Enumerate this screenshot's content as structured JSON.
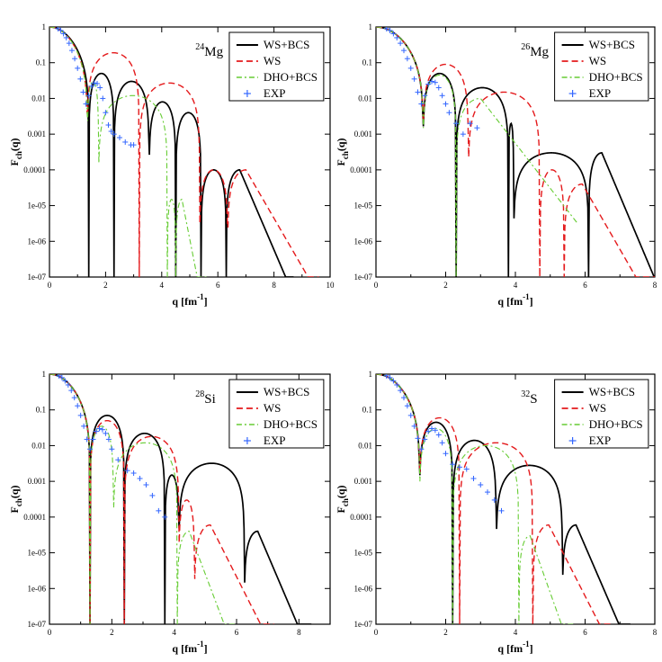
{
  "legend_labels": [
    "WS+BCS",
    "WS",
    "DHO+BCS",
    "EXP"
  ],
  "colors": {
    "WS+BCS": "#000000",
    "WS": "#e41a1c",
    "DHO+BCS": "#66cc33",
    "EXP": "#3366ff"
  },
  "chart_data": [
    {
      "type": "line",
      "nucleus": {
        "mass": "24",
        "symbol": "Mg"
      },
      "xlabel": "q [fm",
      "xlabel_sup": "-1",
      "xlabel_close": "]",
      "ylabel": "F",
      "ylabel_sub": "ch",
      "ylabel_arg": "(q)",
      "yscale": "log",
      "xlim": [
        0,
        10
      ],
      "ylim": [
        1e-07,
        1
      ],
      "xticks": [
        0,
        2,
        4,
        6,
        8,
        10
      ],
      "xticklabels": [
        "0",
        "2",
        "4",
        "6",
        "8",
        "10"
      ],
      "yticks": [
        1,
        0.1,
        0.01,
        0.001,
        0.0001,
        1e-05,
        1e-06,
        1e-07
      ],
      "yticklabels": [
        "1",
        "0.1",
        "0.01",
        "0.001",
        "0.0001",
        "1e-05",
        "1e-06",
        "1e-07"
      ],
      "series": [
        {
          "name": "WS+BCS",
          "style": "solid",
          "zeros": [
            1.4,
            2.3,
            3.55,
            4.5,
            5.4,
            6.3
          ],
          "peaks": [
            0.05,
            0.03,
            0.008,
            0.004,
            0.0001
          ],
          "qmax": 8.7
        },
        {
          "name": "WS",
          "style": "dash",
          "zeros": [
            1.35,
            3.2,
            5.35,
            6.35
          ],
          "peaks": [
            0.19,
            0.027,
            0.0001
          ],
          "qmax": 9.6
        },
        {
          "name": "DHO+BCS",
          "style": "dashdot",
          "zeros": [
            1.35,
            1.75,
            4.2,
            4.5
          ],
          "peaks": [
            0.03,
            0.012,
            1.5e-05
          ],
          "qmax": 5.6
        },
        {
          "name": "EXP",
          "style": "points",
          "x": [
            0.3,
            0.4,
            0.5,
            0.6,
            0.7,
            0.8,
            0.9,
            1.0,
            1.1,
            1.2,
            1.3,
            1.4,
            1.5,
            1.6,
            1.7,
            1.8,
            1.9,
            2.0,
            2.1,
            2.2,
            2.3,
            2.5,
            2.7,
            2.9,
            3.0
          ],
          "y": [
            0.9,
            0.8,
            0.65,
            0.5,
            0.35,
            0.22,
            0.13,
            0.07,
            0.035,
            0.015,
            0.007,
            0.012,
            0.022,
            0.027,
            0.026,
            0.02,
            0.01,
            0.004,
            0.0018,
            0.0012,
            0.001,
            0.0008,
            0.0006,
            0.0005,
            0.0005
          ]
        }
      ]
    },
    {
      "type": "line",
      "nucleus": {
        "mass": "26",
        "symbol": "Mg"
      },
      "xlabel": "q [fm",
      "xlabel_sup": "-1",
      "xlabel_close": "]",
      "ylabel": "F",
      "ylabel_sub": "ch",
      "ylabel_arg": "(q)",
      "yscale": "log",
      "xlim": [
        0,
        8
      ],
      "ylim": [
        1e-07,
        1
      ],
      "xticks": [
        0,
        2,
        4,
        6,
        8
      ],
      "xticklabels": [
        "0",
        "2",
        "4",
        "6",
        "8"
      ],
      "yticks": [
        1,
        0.1,
        0.01,
        0.001,
        0.0001,
        1e-05,
        1e-06,
        1e-07
      ],
      "yticklabels": [
        "1",
        "0.1",
        "0.01",
        "0.001",
        "0.0001",
        "1e-05",
        "1e-06",
        "1e-07"
      ],
      "series": [
        {
          "name": "WS+BCS",
          "style": "solid",
          "zeros": [
            1.35,
            2.3,
            3.8,
            3.95,
            6.1
          ],
          "peaks": [
            0.05,
            0.02,
            0.002,
            0.0003
          ],
          "qmax": 8.0
        },
        {
          "name": "WS",
          "style": "dash",
          "zeros": [
            1.35,
            2.65,
            4.7,
            5.4
          ],
          "peaks": [
            0.09,
            0.015,
            0.0001,
            4e-05
          ],
          "qmax": 8.0
        },
        {
          "name": "DHO+BCS",
          "style": "dashdot",
          "zeros": [
            1.35,
            2.3
          ],
          "peaks": [
            0.045,
            0.01
          ],
          "qmax": 5.8
        },
        {
          "name": "EXP",
          "style": "points",
          "x": [
            0.3,
            0.4,
            0.5,
            0.6,
            0.7,
            0.8,
            0.9,
            1.0,
            1.1,
            1.2,
            1.3,
            1.4,
            1.5,
            1.6,
            1.7,
            1.8,
            1.9,
            2.0,
            2.1,
            2.3,
            2.5,
            2.7,
            2.9
          ],
          "y": [
            0.9,
            0.8,
            0.65,
            0.5,
            0.35,
            0.22,
            0.13,
            0.07,
            0.035,
            0.015,
            0.007,
            0.012,
            0.025,
            0.03,
            0.028,
            0.02,
            0.012,
            0.007,
            0.004,
            0.002,
            0.001,
            0.002,
            0.0015
          ]
        }
      ]
    },
    {
      "type": "line",
      "nucleus": {
        "mass": "28",
        "symbol": "Si"
      },
      "xlabel": "q [fm",
      "xlabel_sup": "-1",
      "xlabel_close": "]",
      "ylabel": "F",
      "ylabel_sub": "ch",
      "ylabel_arg": "(q)",
      "yscale": "log",
      "xlim": [
        0,
        9
      ],
      "ylim": [
        1e-07,
        1
      ],
      "xticks": [
        0,
        2,
        4,
        6,
        8
      ],
      "xticklabels": [
        "0",
        "2",
        "4",
        "6",
        "8"
      ],
      "yticks": [
        1,
        0.1,
        0.01,
        0.001,
        0.0001,
        1e-05,
        1e-06,
        1e-07
      ],
      "yticklabels": [
        "1",
        "0.1",
        "0.01",
        "0.001",
        "0.0001",
        "1e-05",
        "1e-06",
        "1e-07"
      ],
      "series": [
        {
          "name": "WS+BCS",
          "style": "solid",
          "zeros": [
            1.3,
            2.4,
            3.7,
            4.15,
            6.25
          ],
          "peaks": [
            0.07,
            0.022,
            0.0015,
            0.0032,
            4e-05
          ],
          "qmax": 8.4
        },
        {
          "name": "WS",
          "style": "dash",
          "zeros": [
            1.3,
            2.4,
            4.15,
            4.65
          ],
          "peaks": [
            0.05,
            0.018,
            0.0003,
            6e-05
          ],
          "qmax": 7.2
        },
        {
          "name": "DHO+BCS",
          "style": "dashdot",
          "zeros": [
            1.3,
            2.05,
            4.1
          ],
          "peaks": [
            0.035,
            0.012,
            4e-05
          ],
          "qmax": 6.0
        },
        {
          "name": "EXP",
          "style": "points",
          "x": [
            0.3,
            0.4,
            0.5,
            0.6,
            0.7,
            0.8,
            0.9,
            1.0,
            1.1,
            1.2,
            1.3,
            1.4,
            1.5,
            1.6,
            1.7,
            1.8,
            1.9,
            2.0,
            2.2,
            2.5,
            2.7,
            2.9,
            3.1,
            3.3,
            3.5,
            3.7
          ],
          "y": [
            0.9,
            0.8,
            0.65,
            0.5,
            0.35,
            0.22,
            0.13,
            0.07,
            0.035,
            0.015,
            0.008,
            0.015,
            0.025,
            0.03,
            0.028,
            0.022,
            0.015,
            0.008,
            0.004,
            0.002,
            0.0017,
            0.0012,
            0.0008,
            0.0004,
            0.00015,
            0.0001
          ]
        }
      ]
    },
    {
      "type": "line",
      "nucleus": {
        "mass": "32",
        "symbol": "S"
      },
      "xlabel": "q [fm",
      "xlabel_sup": "-1",
      "xlabel_close": "]",
      "ylabel": "F",
      "ylabel_sub": "ch",
      "ylabel_arg": "(q)",
      "yscale": "log",
      "xlim": [
        0,
        8
      ],
      "ylim": [
        1e-07,
        1
      ],
      "xticks": [
        0,
        2,
        4,
        6,
        8
      ],
      "xticklabels": [
        "0",
        "2",
        "4",
        "6",
        "8"
      ],
      "yticks": [
        1,
        0.1,
        0.01,
        0.001,
        0.0001,
        1e-05,
        1e-06,
        1e-07
      ],
      "yticklabels": [
        "1",
        "0.1",
        "0.01",
        "0.001",
        "0.0001",
        "1e-05",
        "1e-06",
        "1e-07"
      ],
      "series": [
        {
          "name": "WS+BCS",
          "style": "solid",
          "zeros": [
            1.25,
            2.2,
            3.45,
            5.35
          ],
          "peaks": [
            0.045,
            0.014,
            0.0028,
            6e-05
          ],
          "qmax": 7.3
        },
        {
          "name": "WS",
          "style": "dash",
          "zeros": [
            1.25,
            2.4,
            4.5
          ],
          "peaks": [
            0.06,
            0.012,
            6e-05
          ],
          "qmax": 6.8
        },
        {
          "name": "DHO+BCS",
          "style": "dashdot",
          "zeros": [
            1.25,
            2.2,
            4.1
          ],
          "peaks": [
            0.03,
            0.01,
            3e-05
          ],
          "qmax": 5.7
        },
        {
          "name": "EXP",
          "style": "points",
          "x": [
            0.3,
            0.4,
            0.5,
            0.6,
            0.7,
            0.8,
            0.9,
            1.0,
            1.1,
            1.2,
            1.3,
            1.4,
            1.5,
            1.6,
            1.7,
            1.8,
            1.9,
            2.0,
            2.2,
            2.4,
            2.6,
            2.8,
            3.0,
            3.2,
            3.4,
            3.6
          ],
          "y": [
            0.9,
            0.8,
            0.65,
            0.5,
            0.35,
            0.22,
            0.13,
            0.07,
            0.035,
            0.016,
            0.008,
            0.015,
            0.025,
            0.03,
            0.027,
            0.02,
            0.012,
            0.006,
            0.003,
            0.0025,
            0.0022,
            0.0012,
            0.0008,
            0.0005,
            0.0003,
            0.00015
          ]
        }
      ]
    }
  ]
}
